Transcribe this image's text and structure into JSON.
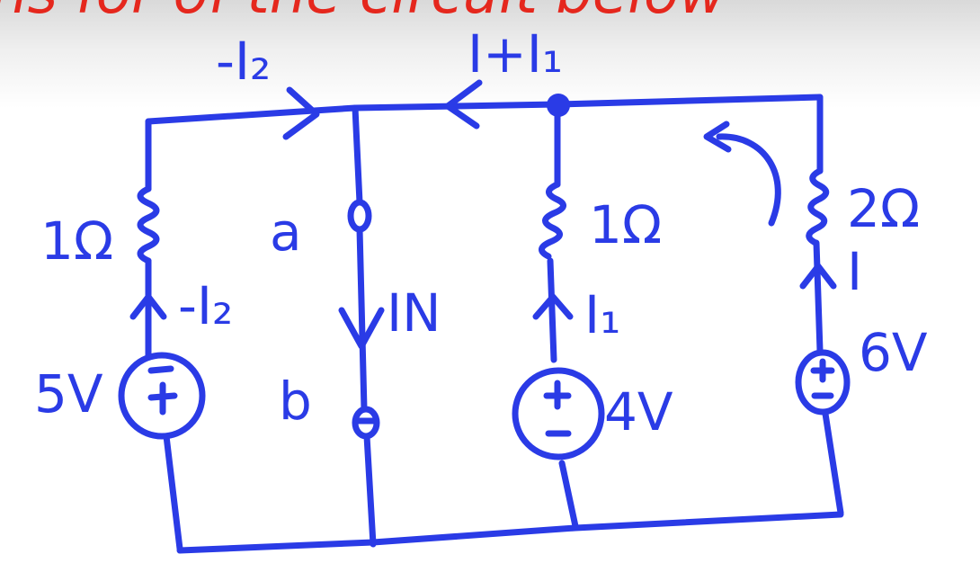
{
  "header": {
    "partial_text": "ns for of the circuit below",
    "color": "#e5271d"
  },
  "circuit": {
    "ink_color": "#2a3be6",
    "labels": {
      "top_left_current": "-I₂",
      "top_mid_current": "I+I₁",
      "r1_value": "1Ω",
      "r1_current": "-I₂",
      "node_a": "a",
      "node_b": "b",
      "norton_current": "IN",
      "r2_value": "1Ω",
      "r2_current": "I₁",
      "r3_value": "2Ω",
      "r3_current": "I",
      "src1_value": "5V",
      "src2_value": "4V",
      "src3_value": "6V"
    }
  }
}
